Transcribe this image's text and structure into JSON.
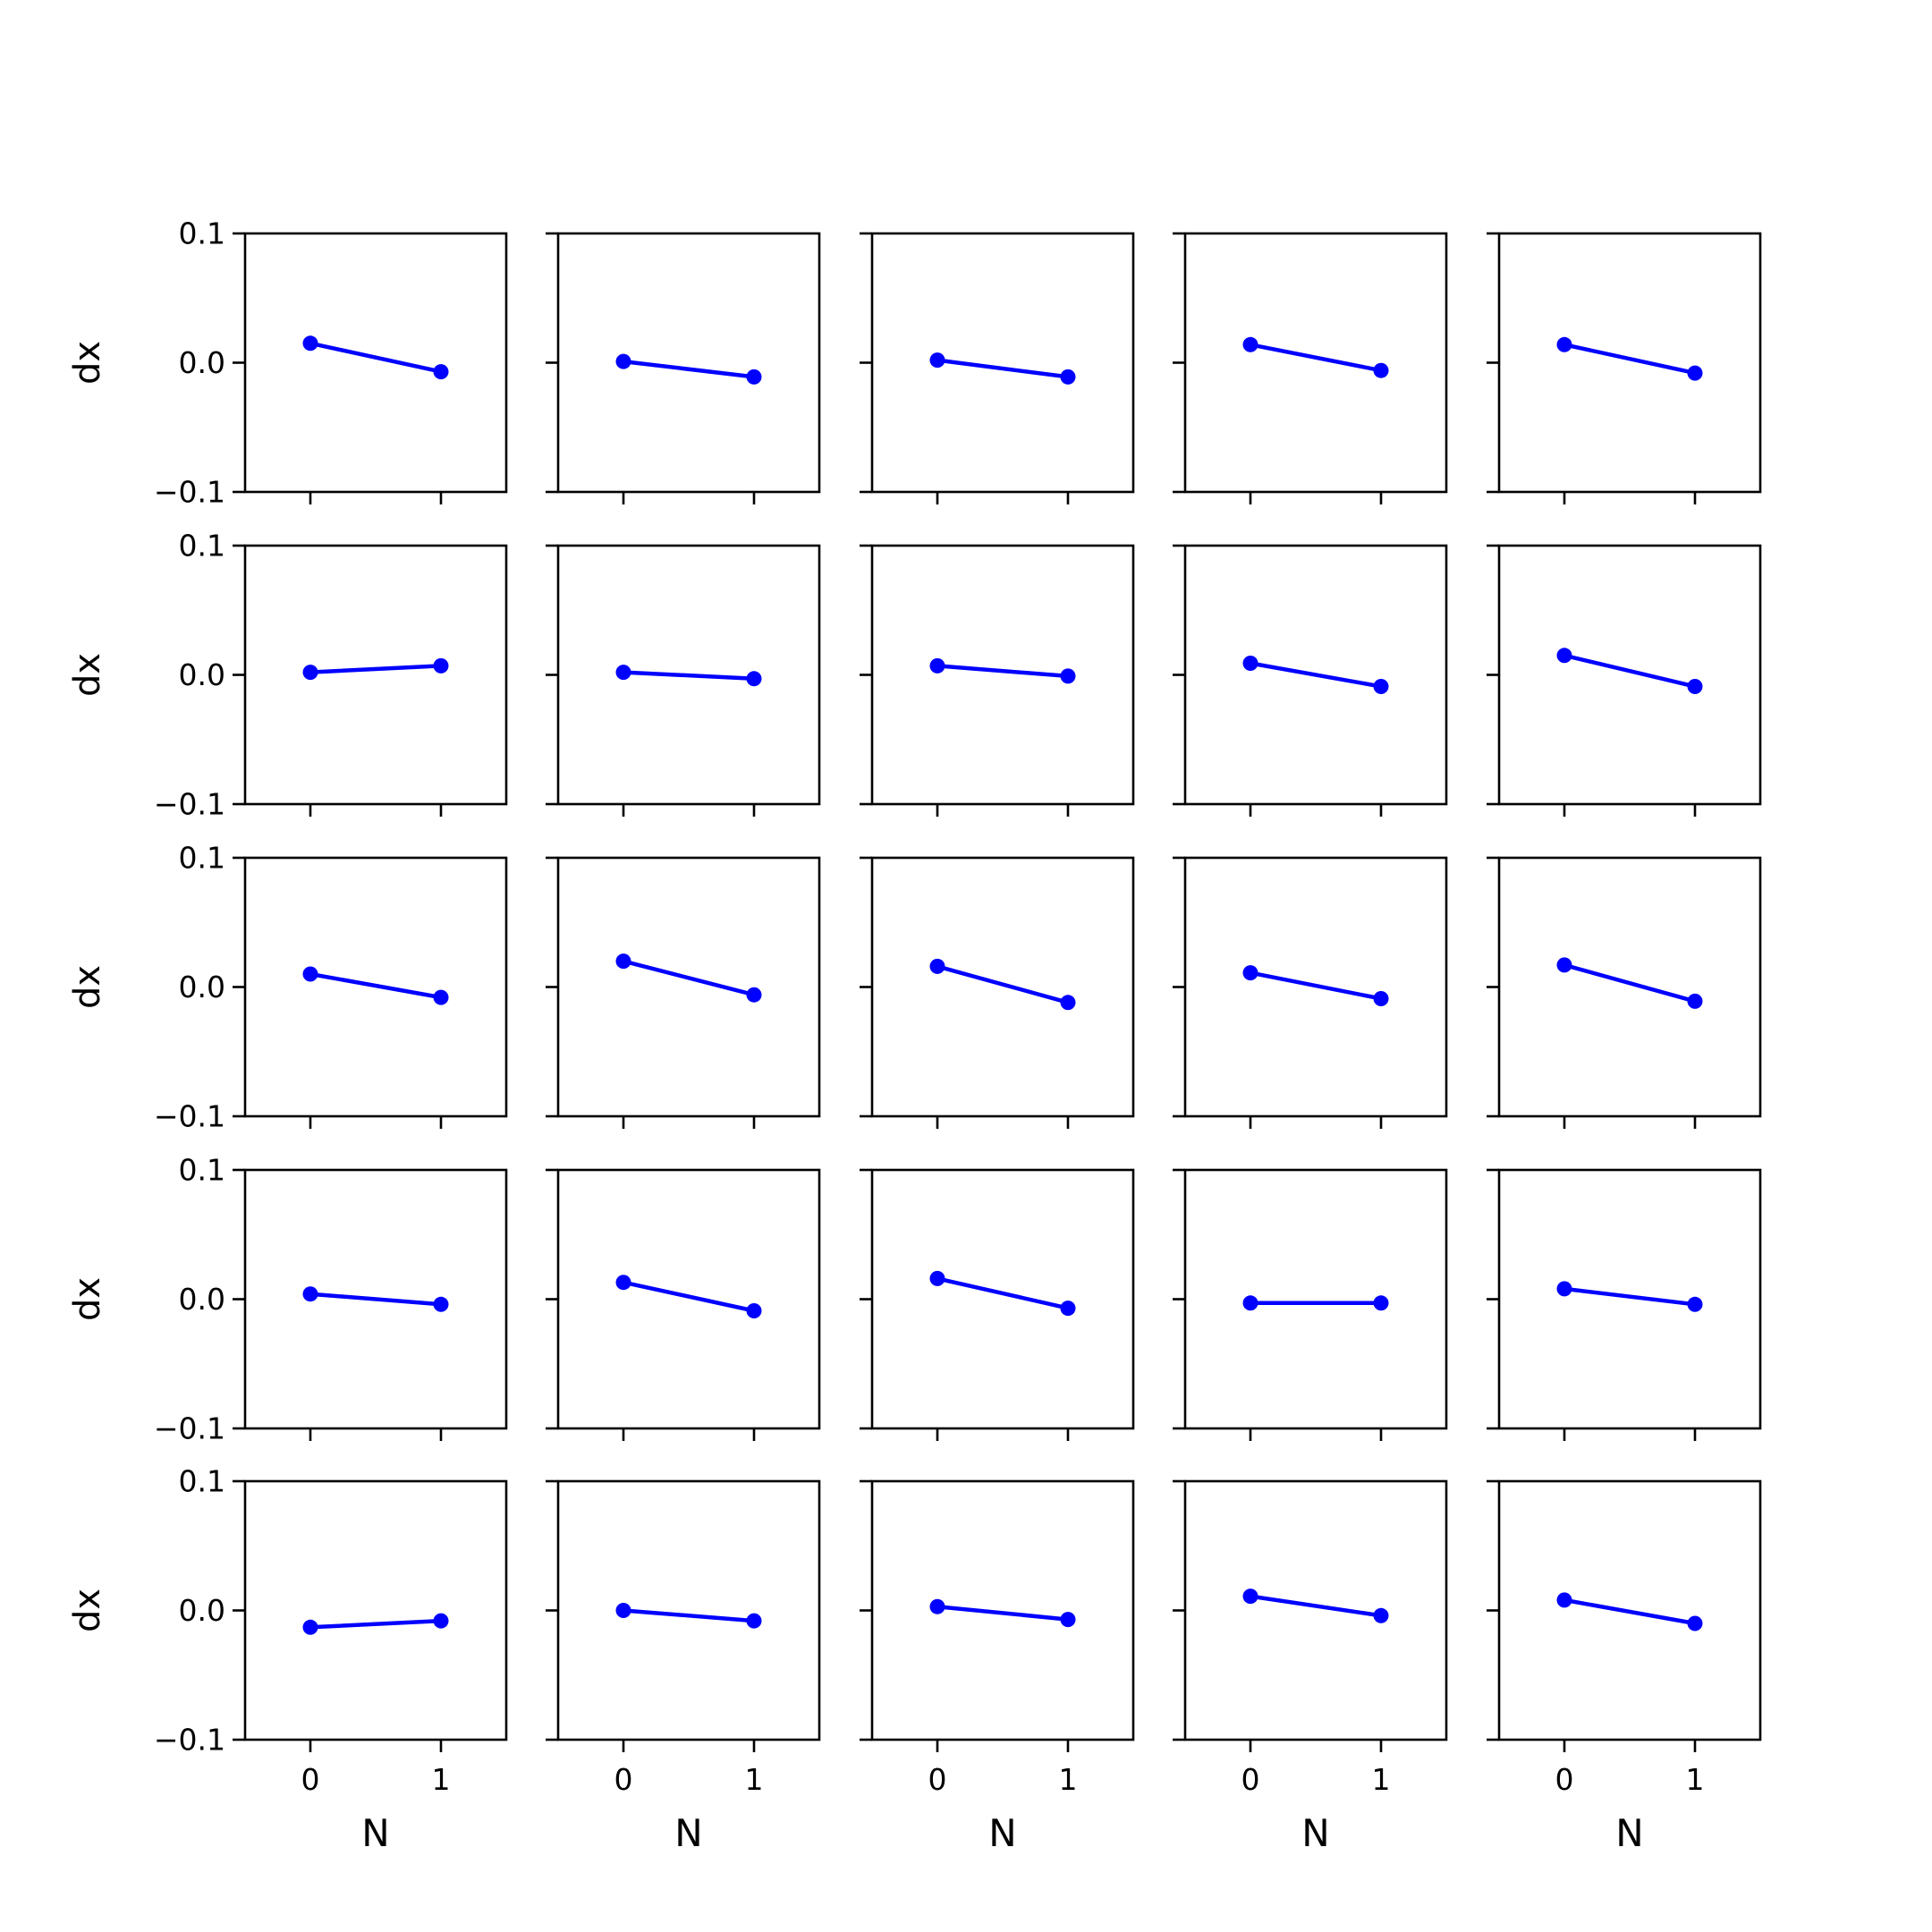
{
  "figure": {
    "rows": 5,
    "cols": 5,
    "line_color": "#0000ff",
    "axis_color": "#000000",
    "background": "#ffffff"
  },
  "chart_data": {
    "type": "line",
    "layout": "5x5 grid of subplots, shared x and y axes",
    "xlabel": "N",
    "ylabel": "dx",
    "x": [
      0,
      1
    ],
    "xlim": [
      -0.5,
      1.5
    ],
    "ylim": [
      -0.1,
      0.1
    ],
    "xticks": [
      "0",
      "1"
    ],
    "yticks": [
      "−0.1",
      "0.0",
      "0.1"
    ],
    "grid": false,
    "subplots": [
      {
        "row": 0,
        "col": 0,
        "values": [
          0.015,
          -0.007
        ]
      },
      {
        "row": 0,
        "col": 1,
        "values": [
          0.001,
          -0.011
        ]
      },
      {
        "row": 0,
        "col": 2,
        "values": [
          0.002,
          -0.011
        ]
      },
      {
        "row": 0,
        "col": 3,
        "values": [
          0.014,
          -0.006
        ]
      },
      {
        "row": 0,
        "col": 4,
        "values": [
          0.014,
          -0.008
        ]
      },
      {
        "row": 1,
        "col": 0,
        "values": [
          0.002,
          0.007
        ]
      },
      {
        "row": 1,
        "col": 1,
        "values": [
          0.002,
          -0.003
        ]
      },
      {
        "row": 1,
        "col": 2,
        "values": [
          0.007,
          -0.001
        ]
      },
      {
        "row": 1,
        "col": 3,
        "values": [
          0.009,
          -0.009
        ]
      },
      {
        "row": 1,
        "col": 4,
        "values": [
          0.015,
          -0.009
        ]
      },
      {
        "row": 2,
        "col": 0,
        "values": [
          0.01,
          -0.008
        ]
      },
      {
        "row": 2,
        "col": 1,
        "values": [
          0.02,
          -0.006
        ]
      },
      {
        "row": 2,
        "col": 2,
        "values": [
          0.016,
          -0.012
        ]
      },
      {
        "row": 2,
        "col": 3,
        "values": [
          0.011,
          -0.009
        ]
      },
      {
        "row": 2,
        "col": 4,
        "values": [
          0.017,
          -0.011
        ]
      },
      {
        "row": 3,
        "col": 0,
        "values": [
          0.004,
          -0.004
        ]
      },
      {
        "row": 3,
        "col": 1,
        "values": [
          0.013,
          -0.009
        ]
      },
      {
        "row": 3,
        "col": 2,
        "values": [
          0.016,
          -0.007
        ]
      },
      {
        "row": 3,
        "col": 3,
        "values": [
          -0.003,
          -0.003
        ]
      },
      {
        "row": 3,
        "col": 4,
        "values": [
          0.008,
          -0.004
        ]
      },
      {
        "row": 4,
        "col": 0,
        "values": [
          -0.013,
          -0.008
        ]
      },
      {
        "row": 4,
        "col": 1,
        "values": [
          0.0,
          -0.008
        ]
      },
      {
        "row": 4,
        "col": 2,
        "values": [
          0.003,
          -0.007
        ]
      },
      {
        "row": 4,
        "col": 3,
        "values": [
          0.011,
          -0.004
        ]
      },
      {
        "row": 4,
        "col": 4,
        "values": [
          0.008,
          -0.01
        ]
      }
    ]
  }
}
